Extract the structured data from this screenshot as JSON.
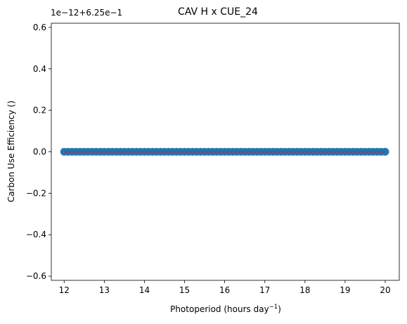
{
  "chart_data": {
    "type": "scatter",
    "title": "CAV H x CUE_24",
    "xlabel": "Photoperiod (hours day",
    "xlabel_superscript": "−1",
    "xlabel_suffix": ")",
    "ylabel": "Carbon Use Efficiency ()",
    "offset_text": "1e−12+6.25e−1",
    "xlim": [
      11.68,
      20.35
    ],
    "ylim": [
      -0.62,
      0.62
    ],
    "xticks": [
      12,
      13,
      14,
      15,
      16,
      17,
      18,
      19,
      20
    ],
    "xtick_labels": [
      "12",
      "13",
      "14",
      "15",
      "16",
      "17",
      "18",
      "19",
      "20"
    ],
    "yticks": [
      -0.6,
      -0.4,
      -0.2,
      0.0,
      0.2,
      0.4,
      0.6
    ],
    "ytick_labels": [
      "−0.6",
      "−0.4",
      "−0.2",
      "0.0",
      "0.2",
      "0.4",
      "0.6"
    ],
    "grid": false,
    "series": [
      {
        "type": "scatter",
        "color": "#1f77b4",
        "x": [
          12.0,
          12.1,
          12.2,
          12.3,
          12.4,
          12.5,
          12.6,
          12.7,
          12.8,
          12.9,
          13.0,
          13.1,
          13.2,
          13.3,
          13.4,
          13.5,
          13.6,
          13.7,
          13.8,
          13.9,
          14.0,
          14.1,
          14.2,
          14.3,
          14.4,
          14.5,
          14.6,
          14.7,
          14.8,
          14.9,
          15.0,
          15.1,
          15.2,
          15.3,
          15.4,
          15.5,
          15.6,
          15.7,
          15.8,
          15.9,
          16.0,
          16.1,
          16.2,
          16.3,
          16.4,
          16.5,
          16.6,
          16.7,
          16.8,
          16.9,
          17.0,
          17.1,
          17.2,
          17.3,
          17.4,
          17.5,
          17.6,
          17.7,
          17.8,
          17.9,
          18.0,
          18.1,
          18.2,
          18.3,
          18.4,
          18.5,
          18.6,
          18.7,
          18.8,
          18.9,
          19.0,
          19.1,
          19.2,
          19.3,
          19.4,
          19.5,
          19.6,
          19.7,
          19.8,
          19.9,
          20.0
        ],
        "y": [
          0,
          0,
          0,
          0,
          0,
          0,
          0,
          0,
          0,
          0,
          0,
          0,
          0,
          0,
          0,
          0,
          0,
          0,
          0,
          0,
          0,
          0,
          0,
          0,
          0,
          0,
          0,
          0,
          0,
          0,
          0,
          0,
          0,
          0,
          0,
          0,
          0,
          0,
          0,
          0,
          0,
          0,
          0,
          0,
          0,
          0,
          0,
          0,
          0,
          0,
          0,
          0,
          0,
          0,
          0,
          0,
          0,
          0,
          0,
          0,
          0,
          0,
          0,
          0,
          0,
          0,
          0,
          0,
          0,
          0,
          0,
          0,
          0,
          0,
          0,
          0,
          0,
          0,
          0,
          0,
          0
        ]
      },
      {
        "type": "line",
        "color": "#d62728",
        "x": [
          12.0,
          20.0
        ],
        "y": [
          0,
          0
        ]
      }
    ]
  }
}
